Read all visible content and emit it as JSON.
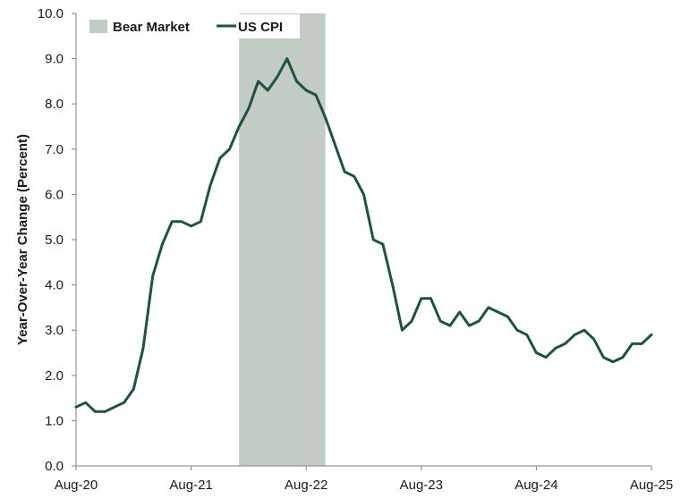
{
  "chart_data": {
    "type": "line",
    "title": "",
    "ylabel": "Year-Over-Year Change (Percent)",
    "xlabel": "",
    "ylim": [
      0,
      10
    ],
    "yticks": [
      "0.0",
      "1.0",
      "2.0",
      "3.0",
      "4.0",
      "5.0",
      "6.0",
      "7.0",
      "8.0",
      "9.0",
      "10.0"
    ],
    "xticks": [
      "Aug-20",
      "Aug-21",
      "Aug-22",
      "Aug-23",
      "Aug-24",
      "Aug-25"
    ],
    "x_start": "Aug-20",
    "x_end": "Aug-25",
    "legend": {
      "placement": "top-left",
      "items": [
        {
          "label": "Bear Market",
          "type": "band",
          "color": "#c3cbc5"
        },
        {
          "label": "US CPI",
          "type": "line",
          "color": "#1e5244"
        }
      ]
    },
    "shaded_ranges": [
      {
        "name": "Bear Market",
        "start": "Jan-22",
        "end": "Oct-22"
      }
    ],
    "series": [
      {
        "name": "US CPI",
        "color": "#1e5244",
        "x": [
          "Aug-20",
          "Sep-20",
          "Oct-20",
          "Nov-20",
          "Dec-20",
          "Jan-21",
          "Feb-21",
          "Mar-21",
          "Apr-21",
          "May-21",
          "Jun-21",
          "Jul-21",
          "Aug-21",
          "Sep-21",
          "Oct-21",
          "Nov-21",
          "Dec-21",
          "Jan-22",
          "Feb-22",
          "Mar-22",
          "Apr-22",
          "May-22",
          "Jun-22",
          "Jul-22",
          "Aug-22",
          "Sep-22",
          "Oct-22",
          "Nov-22",
          "Dec-22",
          "Jan-23",
          "Feb-23",
          "Mar-23",
          "Apr-23",
          "May-23",
          "Jun-23",
          "Jul-23",
          "Aug-23",
          "Sep-23",
          "Oct-23",
          "Nov-23",
          "Dec-23",
          "Jan-24",
          "Feb-24",
          "Mar-24",
          "Apr-24",
          "May-24",
          "Jun-24",
          "Jul-24",
          "Aug-24",
          "Sep-24",
          "Oct-24",
          "Nov-24",
          "Dec-24",
          "Jan-25",
          "Feb-25",
          "Mar-25",
          "Apr-25",
          "May-25",
          "Jun-25",
          "Jul-25",
          "Aug-25"
        ],
        "values": [
          1.3,
          1.4,
          1.2,
          1.2,
          1.3,
          1.4,
          1.7,
          2.6,
          4.2,
          4.9,
          5.4,
          5.4,
          5.3,
          5.4,
          6.2,
          6.8,
          7.0,
          7.5,
          7.9,
          8.5,
          8.3,
          8.6,
          9.0,
          8.5,
          8.3,
          8.2,
          7.7,
          7.1,
          6.5,
          6.4,
          6.0,
          5.0,
          4.9,
          4.0,
          3.0,
          3.2,
          3.7,
          3.7,
          3.2,
          3.1,
          3.4,
          3.1,
          3.2,
          3.5,
          3.4,
          3.3,
          3.0,
          2.9,
          2.5,
          2.4,
          2.6,
          2.7,
          2.9,
          3.0,
          2.8,
          2.4,
          2.3,
          2.4,
          2.7,
          2.7,
          2.9
        ]
      }
    ]
  }
}
